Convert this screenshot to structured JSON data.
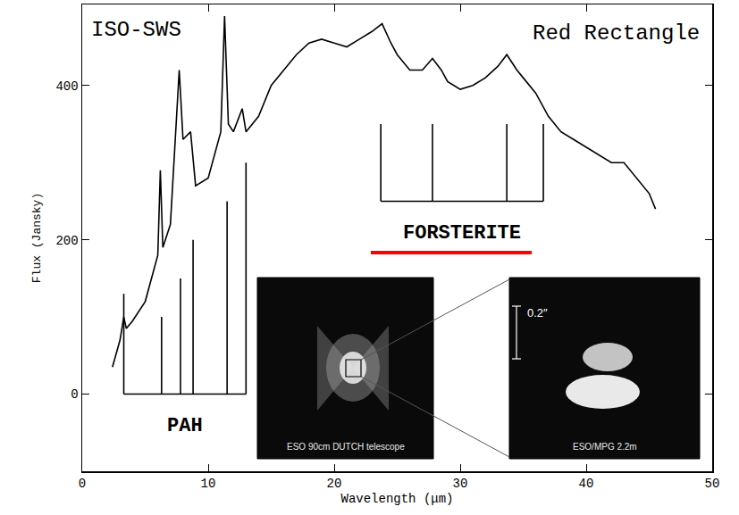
{
  "chart_data": {
    "type": "line",
    "title": "ISO-SWS",
    "subtitle": "Red Rectangle",
    "x_label": "Wavelength (μm)",
    "y_label": "Flux (Jansky)",
    "xlim": [
      0,
      50
    ],
    "ylim": [
      -100,
      505
    ],
    "xticks": [
      0,
      10,
      20,
      30,
      40,
      50
    ],
    "yticks": [
      0,
      200,
      400
    ],
    "grid": false,
    "series": [
      {
        "type": "line",
        "color": "#000000",
        "x": [
          2.4,
          3.0,
          3.3,
          3.5,
          4.0,
          5.0,
          6.0,
          6.2,
          6.4,
          7.0,
          7.7,
          8.0,
          8.6,
          9.0,
          10.0,
          11.0,
          11.3,
          11.6,
          12.0,
          12.7,
          13.0,
          14.0,
          15.0,
          16.0,
          17.0,
          18.0,
          19.0,
          20.0,
          21.0,
          22.0,
          23.0,
          23.8,
          24.5,
          25.0,
          26.0,
          27.0,
          27.8,
          28.5,
          29.0,
          30.0,
          31.0,
          32.0,
          33.0,
          33.7,
          34.5,
          35.0,
          36.0,
          37.0,
          38.0,
          39.0,
          40.0,
          41.0,
          42.0,
          43.0,
          44.0,
          45.0,
          45.5
        ],
        "values": [
          35,
          70,
          100,
          85,
          95,
          120,
          180,
          290,
          190,
          220,
          420,
          330,
          340,
          270,
          280,
          340,
          490,
          350,
          340,
          370,
          340,
          360,
          400,
          420,
          440,
          455,
          460,
          455,
          450,
          460,
          470,
          480,
          455,
          440,
          420,
          420,
          435,
          420,
          405,
          395,
          400,
          410,
          425,
          440,
          420,
          410,
          390,
          360,
          340,
          330,
          320,
          310,
          300,
          300,
          280,
          260,
          240
        ]
      },
      {
        "name": "PAH",
        "type": "comb",
        "color": "#000000",
        "x": [
          3.3,
          6.3,
          7.8,
          8.8,
          11.5,
          13.0
        ],
        "values": [
          130,
          100,
          150,
          200,
          250,
          300
        ],
        "base": 0
      },
      {
        "name": "FORSTERITE",
        "type": "comb",
        "color": "#000000",
        "x": [
          23.7,
          27.8,
          33.7,
          36.6
        ],
        "values": [
          350,
          350,
          350,
          350
        ],
        "base": 250
      }
    ],
    "insets": [
      {
        "label": "ESO 90cm DUTCH telescope"
      },
      {
        "label": "ESO/MPG 2.2m",
        "scale_label": "0.2″"
      }
    ]
  }
}
